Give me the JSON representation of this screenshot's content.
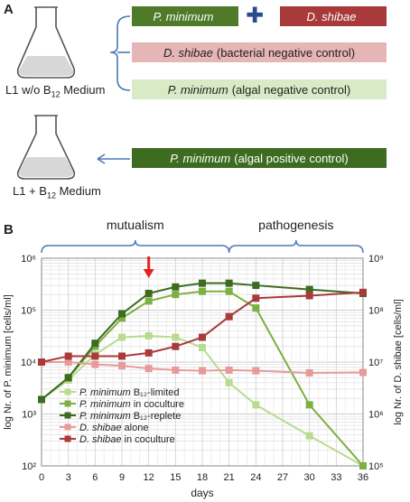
{
  "panel_a": {
    "letter": "A",
    "flask1_label": "L1 w/o B",
    "flask1_sub": "12",
    "flask1_suffix": " Medium",
    "flask2_label": "L1 + B",
    "flask2_sub": "12",
    "flask2_suffix": " Medium",
    "boxes": {
      "p_min_box": {
        "italic": "P. minimum",
        "text": "",
        "color": "#4e7a2a",
        "text_color": "#ffffff"
      },
      "plus_sign": "✚",
      "d_shib_box": {
        "italic": "D. shibae",
        "text": "",
        "color": "#a83a3a",
        "text_color": "#ffffff"
      },
      "bact_ctrl": {
        "italic": "D. shibae",
        "text": "(bacterial negative control)",
        "color": "#e6b5b5",
        "text_color": "#222222"
      },
      "alg_neg": {
        "italic": "P. minimum",
        "text": "(algal negative control)",
        "color": "#d9ebc6",
        "text_color": "#222222"
      },
      "alg_pos": {
        "italic": "P. minimum",
        "text": "(algal positive control)",
        "color": "#3d6b1f",
        "text_color": "#ffffff"
      }
    }
  },
  "panel_b": {
    "letter": "B",
    "phase_mutualism": "mutualism",
    "phase_pathogenesis": "pathogenesis",
    "left_axis_label": "log Nr. of P. minimum [cells/ml]",
    "right_axis_label": "log Nr. of D. shibae [cells/ml]",
    "xlabel": "days"
  },
  "chart_data": {
    "type": "line",
    "xlabel": "days",
    "x_ticks": [
      0,
      3,
      6,
      9,
      12,
      15,
      18,
      21,
      24,
      27,
      30,
      33,
      36
    ],
    "xlim": [
      0,
      36
    ],
    "left_y": {
      "label": "log Nr. of P. minimum [cells/ml]",
      "log": true,
      "lim": [
        100,
        1000000
      ],
      "ticks": [
        "10²",
        "10³",
        "10⁴",
        "10⁵",
        "10⁶"
      ]
    },
    "right_y": {
      "label": "log Nr. of D. shibae [cells/ml]",
      "log": true,
      "lim": [
        100000,
        1000000000
      ],
      "ticks": [
        "10⁵",
        "10⁶",
        "10⁷",
        "10⁸",
        "10⁹"
      ]
    },
    "grid": true,
    "legend_position": "bottom-left",
    "arrow_day": 12,
    "series": [
      {
        "name_italic": "P. minimum",
        "name_rest": " B₁₂-limited",
        "axis": "left",
        "color": "#b8dc8f",
        "x": [
          0,
          3,
          6,
          9,
          12,
          15,
          18,
          21,
          24,
          30,
          36
        ],
        "y": [
          1900,
          4500,
          14000,
          30000,
          32000,
          30000,
          19000,
          4000,
          1500,
          380,
          100
        ]
      },
      {
        "name_italic": "P. minimum",
        "name_rest": " in coculture",
        "axis": "left",
        "color": "#7db043",
        "x": [
          0,
          3,
          6,
          9,
          12,
          15,
          18,
          21,
          24,
          30,
          36
        ],
        "y": [
          1900,
          5000,
          20000,
          70000,
          150000,
          200000,
          230000,
          230000,
          110000,
          1500,
          100
        ]
      },
      {
        "name_italic": "P. minimum",
        "name_rest": " B₁₂-replete",
        "axis": "left",
        "color": "#3d6b1f",
        "x": [
          0,
          3,
          6,
          9,
          12,
          15,
          18,
          21,
          24,
          30,
          36
        ],
        "y": [
          1900,
          5000,
          23000,
          85000,
          210000,
          280000,
          330000,
          330000,
          300000,
          250000,
          210000
        ]
      },
      {
        "name_italic": "D. shibae",
        "name_rest": " alone",
        "axis": "right",
        "color": "#e89a9a",
        "x": [
          0,
          3,
          6,
          9,
          12,
          15,
          18,
          21,
          24,
          30,
          36
        ],
        "y": [
          10000000,
          10000000,
          9000000,
          8500000,
          7500000,
          7000000,
          6800000,
          7000000,
          6800000,
          6200000,
          6300000
        ]
      },
      {
        "name_italic": "D. shibae",
        "name_rest": " in coculture",
        "axis": "right",
        "color": "#a83a3a",
        "x": [
          0,
          3,
          6,
          9,
          12,
          15,
          18,
          21,
          24,
          30,
          36
        ],
        "y": [
          10000000,
          13000000,
          13000000,
          13000000,
          15000000,
          20000000,
          30000000,
          75000000,
          170000000,
          190000000,
          220000000
        ]
      }
    ]
  }
}
